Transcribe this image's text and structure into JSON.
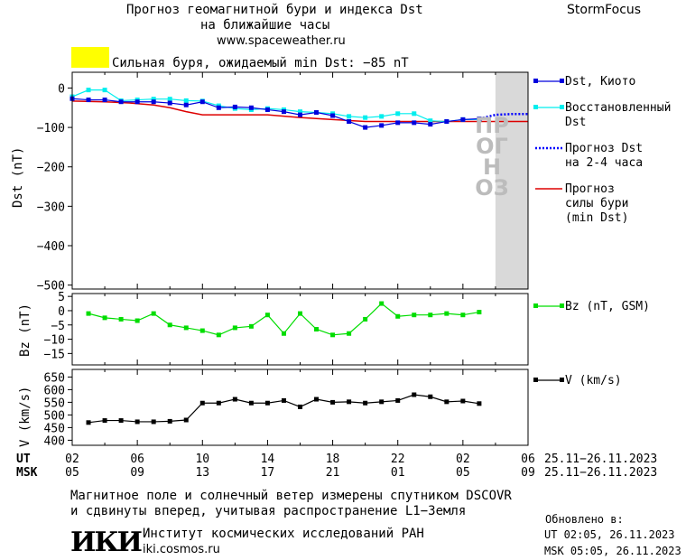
{
  "header": {
    "title_line1": "Прогноз геомагнитной бури и индекса Dst",
    "title_line2": "на ближайшие часы",
    "url": "www.spaceweather.ru",
    "brand": "StormFocus"
  },
  "storm_banner": {
    "text": "Сильная буря, ожидаемый min Dst: −85 nT",
    "swatch_color": "#ffff00"
  },
  "forecast_watermark": "ПРОГНОЗ",
  "legend": {
    "dst_kyoto": "Dst, Киото",
    "restored_1": "Восстановленный",
    "restored_2": "Dst",
    "forecast_1": "Прогноз Dst",
    "forecast_2": "на 2-4 часа",
    "storm_1": "Прогноз",
    "storm_2": "силы бури",
    "storm_3": "(min Dst)",
    "bz": "Bz (nT, GSM)",
    "v": "V (km/s)"
  },
  "time_axis": {
    "ut_label": "UT",
    "msk_label": "MSK",
    "ut_ticks": [
      "02",
      "06",
      "10",
      "14",
      "18",
      "22",
      "02",
      "06"
    ],
    "msk_ticks": [
      "05",
      "09",
      "13",
      "17",
      "21",
      "01",
      "05",
      "09"
    ],
    "ut_range": "25.11−26.11.2023",
    "msk_range": "25.11−26.11.2023"
  },
  "footer": {
    "note_line1": "Магнитное поле и солнечный ветер измерены спутником DSCOVR",
    "note_line2": "и сдвинуты вперед, учитывая распространение L1−Земля",
    "logo_text": "ИКИ",
    "institute": "Институт космических исследований РАН",
    "institute_url": "iki.cosmos.ru",
    "updated_label": "Обновлено в:",
    "updated_ut": "UT  02:05, 26.11.2023",
    "updated_msk": "MSK 05:05, 26.11.2023"
  },
  "colors": {
    "dst": "#0000dd",
    "restored": "#00eeee",
    "forecast": "#0000ff",
    "storm": "#dd0000",
    "bz": "#00dd00",
    "v": "#000000",
    "forecast_bg": "#d9d9d9"
  },
  "chart_data": [
    {
      "type": "line",
      "panel": "dst",
      "ylabel": "Dst (nT)",
      "ylim": [
        -510,
        40
      ],
      "yticks": [
        0,
        -100,
        -200,
        -300,
        -400,
        -500
      ],
      "x_unit": "hours since 02 UT, 25.11.2023",
      "xlim": [
        0,
        28
      ],
      "forecast_region": [
        26,
        28
      ],
      "series": [
        {
          "name": "Dst, Киото",
          "x": [
            0,
            1,
            2,
            3,
            4,
            5,
            6,
            7,
            8,
            9,
            10,
            11,
            12,
            13,
            14,
            15,
            16,
            17,
            18,
            19,
            20,
            21,
            22,
            23,
            24,
            25
          ],
          "y": [
            -27,
            -30,
            -30,
            -35,
            -35,
            -35,
            -38,
            -43,
            -35,
            -50,
            -48,
            -50,
            -55,
            -60,
            -68,
            -62,
            -70,
            -85,
            -100,
            -95,
            -88,
            -88,
            -92,
            -85,
            -80,
            -78
          ]
        },
        {
          "name": "Восстановленный Dst",
          "x": [
            0,
            1,
            2,
            3,
            4,
            5,
            6,
            7,
            8,
            9,
            10,
            11,
            12,
            13,
            14,
            15,
            16,
            17,
            18,
            19,
            20,
            21,
            22,
            23,
            24,
            25
          ],
          "y": [
            -22,
            -5,
            -5,
            -32,
            -30,
            -28,
            -28,
            -32,
            -33,
            -45,
            -52,
            -55,
            -52,
            -55,
            -60,
            -62,
            -65,
            -72,
            -75,
            -72,
            -65,
            -65,
            -83,
            -85,
            -80,
            -80
          ]
        },
        {
          "name": "Прогноз Dst на 2-4 часа",
          "x": [
            25,
            26,
            27,
            28
          ],
          "y": [
            -78,
            -68,
            -66,
            -66
          ]
        },
        {
          "name": "Прогноз силы бури (min Dst)",
          "x": [
            0,
            2,
            3.5,
            5,
            6,
            7,
            8,
            12,
            14,
            16,
            18,
            20,
            24,
            28
          ],
          "y": [
            -33,
            -35,
            -38,
            -43,
            -50,
            -60,
            -68,
            -68,
            -75,
            -80,
            -85,
            -85,
            -85,
            -85
          ]
        }
      ]
    },
    {
      "type": "line",
      "panel": "bz",
      "ylabel": "Bz (nT)",
      "ylim": [
        -19,
        6
      ],
      "yticks": [
        5,
        0,
        -5,
        -10,
        -15
      ],
      "series": [
        {
          "name": "Bz (nT, GSM)",
          "x": [
            1,
            2,
            3,
            4,
            5,
            6,
            7,
            8,
            9,
            10,
            11,
            12,
            13,
            14,
            15,
            16,
            17,
            18,
            19,
            20,
            21,
            22,
            23,
            24,
            25
          ],
          "y": [
            -1,
            -2.5,
            -3,
            -3.5,
            -1,
            -5,
            -6,
            -7,
            -8.5,
            -6,
            -5.5,
            -1.5,
            -8,
            -1,
            -6.5,
            -8.5,
            -8,
            -3,
            2.5,
            -2,
            -1.5,
            -1.5,
            -1,
            -1.5,
            -0.5
          ]
        }
      ]
    },
    {
      "type": "line",
      "panel": "v",
      "ylabel": "V (km/s)",
      "ylim": [
        380,
        680
      ],
      "yticks": [
        650,
        600,
        550,
        500,
        450,
        400
      ],
      "series": [
        {
          "name": "V (km/s)",
          "x": [
            1,
            2,
            3,
            4,
            5,
            6,
            7,
            8,
            9,
            10,
            11,
            12,
            13,
            14,
            15,
            16,
            17,
            18,
            19,
            20,
            21,
            22,
            23,
            24,
            25
          ],
          "y": [
            470,
            478,
            478,
            473,
            473,
            475,
            480,
            547,
            547,
            562,
            547,
            547,
            557,
            532,
            562,
            550,
            552,
            547,
            552,
            557,
            580,
            572,
            552,
            555,
            545
          ]
        }
      ]
    }
  ]
}
